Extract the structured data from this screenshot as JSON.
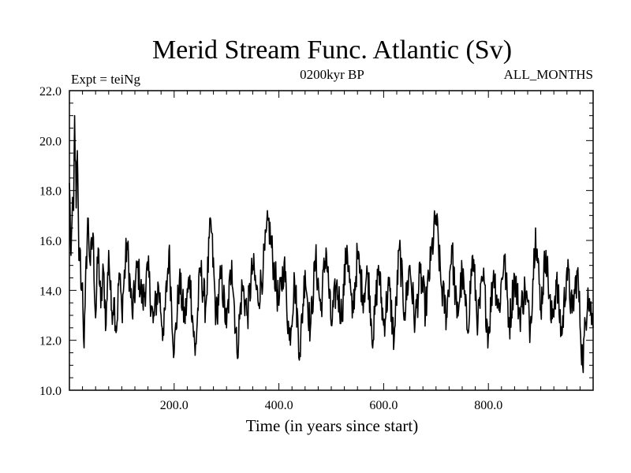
{
  "chart_data": {
    "type": "line",
    "title": "Merid Stream Func. Atlantic (Sv)",
    "annotations": {
      "left": "Expt = teiNg",
      "center": "0200kyr BP",
      "right": "ALL_MONTHS"
    },
    "xlabel": "Time (in years since start)",
    "ylabel": "",
    "xlim": [
      0,
      1000
    ],
    "ylim": [
      10.0,
      22.0
    ],
    "x_ticks": [
      200,
      400,
      600,
      800
    ],
    "x_tick_labels": [
      "200.0",
      "400.0",
      "600.0",
      "800.0"
    ],
    "y_ticks": [
      10,
      12,
      14,
      16,
      18,
      20,
      22
    ],
    "y_tick_labels": [
      "10.0",
      "12.0",
      "14.0",
      "16.0",
      "18.0",
      "20.0",
      "22.0"
    ],
    "grid": false,
    "series": [
      {
        "color": "#000000",
        "x": [
          0,
          3,
          5,
          8,
          10,
          13,
          15,
          18,
          20,
          23,
          25,
          28,
          30,
          35,
          40,
          45,
          50,
          55,
          60,
          65,
          70,
          75,
          80,
          85,
          90,
          95,
          100,
          110,
          120,
          130,
          140,
          150,
          160,
          170,
          180,
          190,
          200,
          210,
          220,
          230,
          240,
          250,
          260,
          270,
          280,
          290,
          300,
          310,
          320,
          330,
          340,
          350,
          360,
          370,
          380,
          390,
          400,
          410,
          420,
          430,
          440,
          450,
          460,
          470,
          480,
          490,
          500,
          510,
          520,
          530,
          540,
          550,
          560,
          570,
          580,
          590,
          600,
          610,
          620,
          630,
          640,
          650,
          660,
          670,
          680,
          690,
          700,
          710,
          720,
          730,
          740,
          750,
          760,
          770,
          780,
          790,
          800,
          810,
          820,
          830,
          840,
          850,
          860,
          870,
          880,
          890,
          900,
          910,
          920,
          930,
          940,
          950,
          960,
          970,
          980,
          990,
          1000
        ],
        "y": [
          18.3,
          15.4,
          16.8,
          17.2,
          21.0,
          17.3,
          19.6,
          15.2,
          15.7,
          14.0,
          14.3,
          11.7,
          13.4,
          16.9,
          15.0,
          16.3,
          12.9,
          15.7,
          13.3,
          14.8,
          12.6,
          15.6,
          13.2,
          13.7,
          12.4,
          14.7,
          13.2,
          15.9,
          13.0,
          15.0,
          13.5,
          14.8,
          12.7,
          14.2,
          12.2,
          15.6,
          11.5,
          14.4,
          12.8,
          14.6,
          11.4,
          14.9,
          13.3,
          16.8,
          12.9,
          14.6,
          12.5,
          15.2,
          11.5,
          14.2,
          13.0,
          15.0,
          13.6,
          14.9,
          16.8,
          15.0,
          13.4,
          15.1,
          12.0,
          14.4,
          11.5,
          14.8,
          12.4,
          15.3,
          13.2,
          15.7,
          12.6,
          14.2,
          13.0,
          15.8,
          12.9,
          15.4,
          13.8,
          14.7,
          12.0,
          15.0,
          12.6,
          14.2,
          12.0,
          15.7,
          13.1,
          15.0,
          12.7,
          14.7,
          13.2,
          15.2,
          17.0,
          14.2,
          13.0,
          15.8,
          12.9,
          14.7,
          12.4,
          15.4,
          12.7,
          14.5,
          12.2,
          14.8,
          13.2,
          15.4,
          12.6,
          14.6,
          13.0,
          14.1,
          12.5,
          16.5,
          13.3,
          15.6,
          12.7,
          14.3,
          12.2,
          14.9,
          13.1,
          14.8,
          11.0,
          14.1,
          12.5
        ]
      }
    ]
  }
}
